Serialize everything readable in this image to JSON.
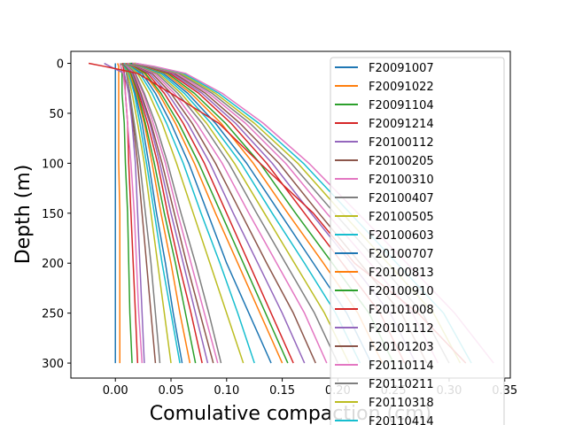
{
  "chart_data": {
    "type": "line",
    "xlabel": "Comulative compaction (cm)",
    "ylabel": "Depth (m)",
    "xlim": [
      -0.04,
      0.355
    ],
    "ylim": [
      315,
      -12
    ],
    "x_ticks": [
      "0.00",
      "0.05",
      "0.10",
      "0.15",
      "0.20",
      "0.25",
      "0.30",
      "0.35"
    ],
    "x_tick_values": [
      0,
      0.05,
      0.1,
      0.15,
      0.2,
      0.25,
      0.3,
      0.35
    ],
    "y_ticks": [
      "0",
      "50",
      "100",
      "150",
      "200",
      "250",
      "300"
    ],
    "y_tick_values": [
      0,
      50,
      100,
      150,
      200,
      250,
      300
    ],
    "legend_position": "upper-right",
    "legend": [
      {
        "name": "F20091007",
        "color": "#1f77b4"
      },
      {
        "name": "F20091022",
        "color": "#ff7f0e"
      },
      {
        "name": "F20091104",
        "color": "#2ca02c"
      },
      {
        "name": "F20091214",
        "color": "#d62728"
      },
      {
        "name": "F20100112",
        "color": "#9467bd"
      },
      {
        "name": "F20100205",
        "color": "#8c564b"
      },
      {
        "name": "F20100310",
        "color": "#e377c2"
      },
      {
        "name": "F20100407",
        "color": "#7f7f7f"
      },
      {
        "name": "F20100505",
        "color": "#bcbd22"
      },
      {
        "name": "F20100603",
        "color": "#17becf"
      },
      {
        "name": "F20100707",
        "color": "#1f77b4"
      },
      {
        "name": "F20100813",
        "color": "#ff7f0e"
      },
      {
        "name": "F20100910",
        "color": "#2ca02c"
      },
      {
        "name": "F20101008",
        "color": "#d62728"
      },
      {
        "name": "F20101112",
        "color": "#9467bd"
      },
      {
        "name": "F20101203",
        "color": "#8c564b"
      },
      {
        "name": "F20110114",
        "color": "#e377c2"
      },
      {
        "name": "F20110211",
        "color": "#7f7f7f"
      },
      {
        "name": "F20110318",
        "color": "#bcbd22"
      },
      {
        "name": "F20110414",
        "color": "#17becf"
      }
    ],
    "palette": [
      "#1f77b4",
      "#ff7f0e",
      "#2ca02c",
      "#d62728",
      "#9467bd",
      "#8c564b",
      "#e377c2",
      "#7f7f7f",
      "#bcbd22",
      "#17becf"
    ],
    "depths": [
      0,
      3,
      10,
      30,
      60,
      100,
      150,
      200,
      250,
      300
    ],
    "series": [
      {
        "color": "#1f77b4",
        "x": [
          0,
          0,
          0,
          0,
          0,
          0,
          0,
          0,
          0,
          0
        ]
      },
      {
        "color": "#ff7f0e",
        "x": [
          0.002,
          0.003,
          0.003,
          0.003,
          0.003,
          0.003,
          0.004,
          0.004,
          0.004,
          0.004
        ]
      },
      {
        "color": "#2ca02c",
        "x": [
          0.005,
          0.005,
          0.006,
          0.006,
          0.008,
          0.009,
          0.011,
          0.012,
          0.013,
          0.015
        ]
      },
      {
        "color": "#d62728",
        "x": [
          0.006,
          0.007,
          0.008,
          0.009,
          0.011,
          0.012,
          0.014,
          0.016,
          0.018,
          0.02
        ]
      },
      {
        "color": "#9467bd",
        "x": [
          -0.01,
          -0.005,
          0.008,
          0.012,
          0.015,
          0.018,
          0.02,
          0.022,
          0.024,
          0.026
        ]
      },
      {
        "color": "#8c564b",
        "x": [
          0.006,
          0.008,
          0.01,
          0.013,
          0.016,
          0.02,
          0.024,
          0.028,
          0.032,
          0.036
        ]
      },
      {
        "color": "#e377c2",
        "x": [
          0.004,
          0.005,
          0.007,
          0.009,
          0.011,
          0.014,
          0.017,
          0.019,
          0.021,
          0.024
        ]
      },
      {
        "color": "#7f7f7f",
        "x": [
          0.006,
          0.008,
          0.01,
          0.013,
          0.017,
          0.022,
          0.027,
          0.032,
          0.036,
          0.04
        ]
      },
      {
        "color": "#bcbd22",
        "x": [
          0.006,
          0.008,
          0.011,
          0.015,
          0.02,
          0.026,
          0.032,
          0.038,
          0.044,
          0.05
        ]
      },
      {
        "color": "#17becf",
        "x": [
          0.006,
          0.008,
          0.012,
          0.017,
          0.022,
          0.028,
          0.035,
          0.042,
          0.05,
          0.058
        ]
      },
      {
        "color": "#1f77b4",
        "x": [
          0.006,
          0.009,
          0.013,
          0.018,
          0.024,
          0.03,
          0.037,
          0.045,
          0.052,
          0.06
        ]
      },
      {
        "color": "#ff7f0e",
        "x": [
          0.006,
          0.009,
          0.013,
          0.019,
          0.026,
          0.033,
          0.041,
          0.05,
          0.058,
          0.067
        ]
      },
      {
        "color": "#2ca02c",
        "x": [
          0.006,
          0.009,
          0.014,
          0.02,
          0.027,
          0.035,
          0.044,
          0.054,
          0.063,
          0.072
        ]
      },
      {
        "color": "#d62728",
        "x": [
          0.006,
          0.01,
          0.015,
          0.021,
          0.029,
          0.038,
          0.047,
          0.057,
          0.068,
          0.078
        ]
      },
      {
        "color": "#9467bd",
        "x": [
          0.007,
          0.01,
          0.015,
          0.022,
          0.031,
          0.04,
          0.05,
          0.061,
          0.072,
          0.083
        ]
      },
      {
        "color": "#8c564b",
        "x": [
          0.007,
          0.011,
          0.016,
          0.023,
          0.032,
          0.042,
          0.053,
          0.064,
          0.076,
          0.088
        ]
      },
      {
        "color": "#e377c2",
        "x": [
          0.007,
          0.011,
          0.017,
          0.025,
          0.034,
          0.045,
          0.056,
          0.068,
          0.08,
          0.092
        ]
      },
      {
        "color": "#7f7f7f",
        "x": [
          0.007,
          0.012,
          0.018,
          0.026,
          0.036,
          0.047,
          0.059,
          0.072,
          0.084,
          0.095
        ]
      },
      {
        "color": "#bcbd22",
        "x": [
          0.008,
          0.013,
          0.02,
          0.03,
          0.042,
          0.055,
          0.07,
          0.085,
          0.1,
          0.115
        ]
      },
      {
        "color": "#17becf",
        "x": [
          0.008,
          0.014,
          0.022,
          0.033,
          0.046,
          0.061,
          0.077,
          0.094,
          0.11,
          0.125
        ]
      },
      {
        "color": "#1f77b4",
        "x": [
          0.009,
          0.015,
          0.024,
          0.036,
          0.05,
          0.066,
          0.083,
          0.1,
          0.12,
          0.14
        ]
      },
      {
        "color": "#ff7f0e",
        "x": [
          0.009,
          0.016,
          0.026,
          0.039,
          0.054,
          0.071,
          0.09,
          0.11,
          0.13,
          0.15
        ]
      },
      {
        "color": "#2ca02c",
        "x": [
          0.01,
          0.017,
          0.027,
          0.041,
          0.057,
          0.075,
          0.095,
          0.115,
          0.135,
          0.155
        ]
      },
      {
        "color": "#d62728",
        "x": [
          0.01,
          0.018,
          0.029,
          0.044,
          0.061,
          0.08,
          0.1,
          0.12,
          0.14,
          0.16
        ]
      },
      {
        "color": "#9467bd",
        "x": [
          0.01,
          0.019,
          0.031,
          0.047,
          0.065,
          0.085,
          0.106,
          0.128,
          0.15,
          0.17
        ]
      },
      {
        "color": "#8c564b",
        "x": [
          0.011,
          0.02,
          0.033,
          0.05,
          0.069,
          0.09,
          0.113,
          0.136,
          0.16,
          0.18
        ]
      },
      {
        "color": "#e377c2",
        "x": [
          0.011,
          0.021,
          0.035,
          0.053,
          0.073,
          0.096,
          0.12,
          0.145,
          0.17,
          0.19
        ]
      },
      {
        "color": "#7f7f7f",
        "x": [
          0.012,
          0.022,
          0.037,
          0.056,
          0.078,
          0.102,
          0.127,
          0.153,
          0.179,
          0.2
        ]
      },
      {
        "color": "#bcbd22",
        "x": [
          0.012,
          0.023,
          0.039,
          0.059,
          0.082,
          0.107,
          0.134,
          0.161,
          0.188,
          0.21
        ]
      },
      {
        "color": "#17becf",
        "x": [
          0.013,
          0.024,
          0.041,
          0.062,
          0.086,
          0.113,
          0.141,
          0.17,
          0.198,
          0.22
        ]
      },
      {
        "color": "#1f77b4",
        "x": [
          0.013,
          0.025,
          0.043,
          0.065,
          0.09,
          0.118,
          0.148,
          0.178,
          0.208,
          0.23
        ]
      },
      {
        "color": "#ff7f0e",
        "x": [
          0.014,
          0.026,
          0.045,
          0.068,
          0.095,
          0.124,
          0.155,
          0.187,
          0.218,
          0.24
        ]
      },
      {
        "color": "#2ca02c",
        "x": [
          0.014,
          0.027,
          0.047,
          0.071,
          0.099,
          0.13,
          0.162,
          0.195,
          0.228,
          0.25
        ]
      },
      {
        "color": "#d62728",
        "x": [
          0.015,
          0.028,
          0.049,
          0.075,
          0.104,
          0.136,
          0.17,
          0.204,
          0.238,
          0.26
        ]
      },
      {
        "color": "#9467bd",
        "x": [
          0.015,
          0.029,
          0.051,
          0.078,
          0.108,
          0.141,
          0.176,
          0.212,
          0.247,
          0.27
        ]
      },
      {
        "color": "#8c564b",
        "x": [
          0.016,
          0.03,
          0.053,
          0.081,
          0.112,
          0.147,
          0.183,
          0.22,
          0.257,
          0.28
        ]
      },
      {
        "color": "#e377c2",
        "x": [
          0.016,
          0.031,
          0.055,
          0.084,
          0.117,
          0.153,
          0.19,
          0.229,
          0.267,
          0.29
        ]
      },
      {
        "color": "#7f7f7f",
        "x": [
          0.017,
          0.032,
          0.057,
          0.087,
          0.121,
          0.158,
          0.197,
          0.237,
          0.276,
          0.3
        ]
      },
      {
        "color": "#bcbd22",
        "x": [
          0.017,
          0.033,
          0.059,
          0.09,
          0.125,
          0.164,
          0.204,
          0.245,
          0.286,
          0.31
        ]
      },
      {
        "color": "#17becf",
        "x": [
          0.018,
          0.034,
          0.061,
          0.093,
          0.129,
          0.169,
          0.211,
          0.253,
          0.295,
          0.32
        ]
      },
      {
        "color": "#d62728",
        "x": [
          -0.024,
          -0.01,
          0.02,
          0.05,
          0.093,
          0.13,
          0.178,
          0.215,
          0.272,
          0.315
        ]
      },
      {
        "color": "#e377c2",
        "x": [
          0.018,
          0.035,
          0.063,
          0.096,
          0.133,
          0.174,
          0.218,
          0.262,
          0.305,
          0.34
        ]
      }
    ]
  }
}
